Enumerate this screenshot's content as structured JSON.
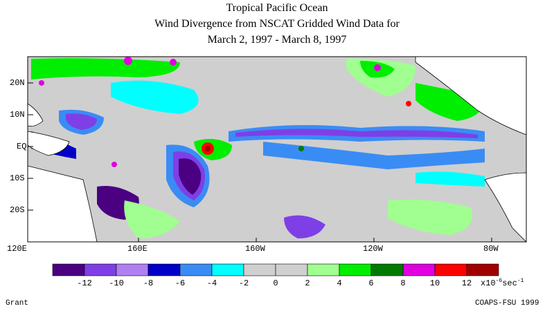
{
  "title": {
    "line1": "Tropical Pacific Ocean",
    "line2": "Wind Divergence from NSCAT Gridded Wind Data for",
    "line3": "March 2, 1997 - March 8, 1997"
  },
  "map": {
    "lat_labels": [
      "20N",
      "10N",
      "EQ",
      "10S",
      "20S"
    ],
    "lon_labels": [
      "120E",
      "160E",
      "160W",
      "120W",
      "80W"
    ],
    "land_color": "#ffffff",
    "ocean_background": "#cfcfcf"
  },
  "colorbar": {
    "colors": [
      "#4b0082",
      "#7f3fe6",
      "#b080f2",
      "#0000c8",
      "#3a8cf5",
      "#00ffff",
      "#cfcfcf",
      "#cfcfcf",
      "#a0ff90",
      "#00ee00",
      "#007a00",
      "#e000e0",
      "#ff0000",
      "#a00000"
    ],
    "tick_labels": [
      "-12",
      "-10",
      "-8",
      "-6",
      "-4",
      "-2",
      "0",
      "2",
      "4",
      "6",
      "8",
      "10",
      "12"
    ],
    "units_prefix": "x10",
    "units_exp": "-6",
    "units_suffix": "sec",
    "units_exp2": "-1"
  },
  "footer": {
    "left": "Grant",
    "right": "COAPS-FSU 1999"
  }
}
